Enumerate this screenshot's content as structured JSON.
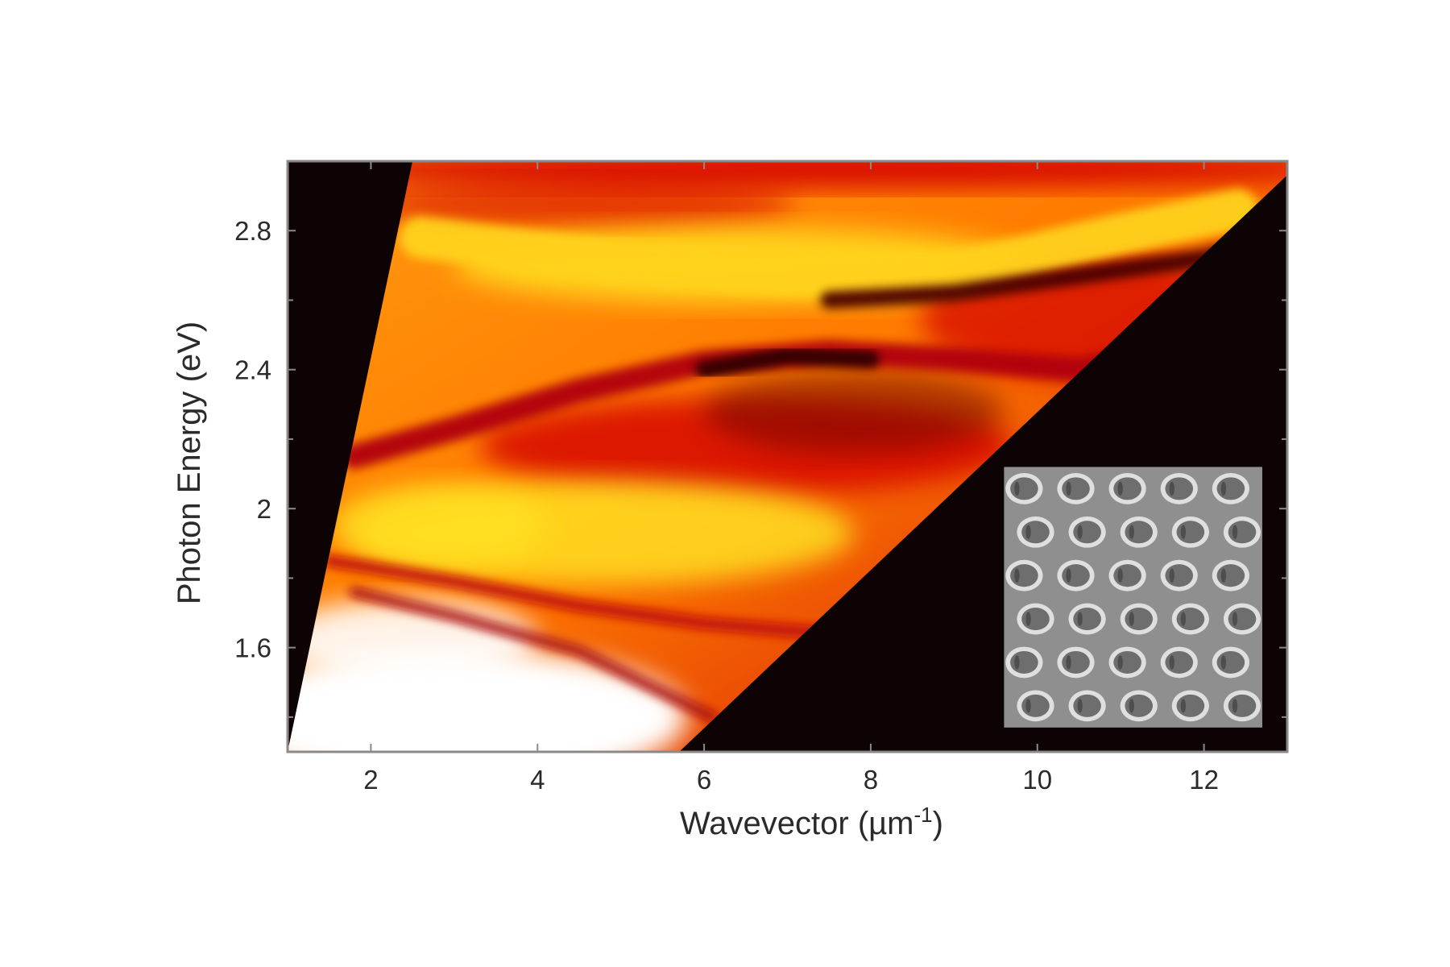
{
  "chart_data": {
    "type": "heatmap",
    "title": "",
    "xlabel": {
      "main": "Wavevector (µm",
      "sup": "-1",
      "end": ")"
    },
    "ylabel": "Photon Energy (eV)",
    "xlim": [
      1.0,
      13.0
    ],
    "ylim": [
      1.3,
      3.0
    ],
    "x_ticks": [
      2,
      4,
      6,
      8,
      10,
      12
    ],
    "x_tick_labels": [
      "2",
      "4",
      "6",
      "8",
      "10",
      "12"
    ],
    "y_ticks": [
      1.6,
      2.0,
      2.4,
      2.8
    ],
    "y_tick_labels": [
      "1.6",
      "2",
      "2.4",
      "2.8"
    ],
    "y_minor_ticks": [
      1.4,
      1.8,
      2.2,
      2.6
    ],
    "colormap": [
      "#000000",
      "#5a0000",
      "#d40000",
      "#ff7a00",
      "#ffe020",
      "#ffffff"
    ],
    "background_color": "#0d0204",
    "masked_regions": [
      {
        "name": "left-black-region",
        "points": [
          [
            1.0,
            1.3
          ],
          [
            1.0,
            3.0
          ],
          [
            2.5,
            3.0
          ]
        ]
      },
      {
        "name": "right-black-region",
        "points": [
          [
            5.7,
            1.3
          ],
          [
            13.0,
            1.3
          ],
          [
            13.0,
            2.96
          ]
        ]
      }
    ],
    "bands": [
      {
        "name": "upper-light-band",
        "points": [
          [
            2.6,
            2.78
          ],
          [
            5,
            2.71
          ],
          [
            7,
            2.67
          ],
          [
            9,
            2.68
          ],
          [
            11,
            2.79
          ],
          [
            12.4,
            2.86
          ]
        ],
        "color": "#ffd21a",
        "width": 0.12
      },
      {
        "name": "dark-band-upper",
        "points": [
          [
            7.5,
            2.6
          ],
          [
            9,
            2.62
          ],
          [
            10.5,
            2.67
          ],
          [
            12,
            2.72
          ],
          [
            12.6,
            2.76
          ]
        ],
        "color": "#4a0406",
        "width": 0.05
      },
      {
        "name": "dark-band-middle",
        "points": [
          [
            1.8,
            2.15
          ],
          [
            3,
            2.23
          ],
          [
            4.5,
            2.34
          ],
          [
            6,
            2.42
          ],
          [
            7.5,
            2.45
          ],
          [
            9,
            2.43
          ],
          [
            10.5,
            2.4
          ],
          [
            11.5,
            2.44
          ]
        ],
        "color": "#b00008",
        "width": 0.07
      },
      {
        "name": "dark-core-middle",
        "points": [
          [
            6.0,
            2.4
          ],
          [
            7.0,
            2.44
          ],
          [
            8.0,
            2.43
          ]
        ],
        "color": "#2a0204",
        "width": 0.05
      },
      {
        "name": "red-band-lower",
        "points": [
          [
            1.5,
            1.85
          ],
          [
            3,
            1.79
          ],
          [
            4.5,
            1.72
          ],
          [
            6,
            1.67
          ],
          [
            7.5,
            1.64
          ]
        ],
        "color": "#c00a0a",
        "width": 0.035
      },
      {
        "name": "red-band-diagonal",
        "points": [
          [
            1.8,
            1.76
          ],
          [
            3,
            1.69
          ],
          [
            4.5,
            1.59
          ],
          [
            6.1,
            1.4
          ]
        ],
        "color": "#a80808",
        "width": 0.03
      }
    ],
    "inset": {
      "type": "image",
      "description_name": "sem-hole-array-inset",
      "rows": 6,
      "cols": 5,
      "x_range": [
        9.6,
        12.7
      ],
      "y_range": [
        1.37,
        2.12
      ],
      "background": "#8f8f8f",
      "hole_color": "#6e6e6e",
      "rim_color": "#e8e8e8"
    }
  }
}
